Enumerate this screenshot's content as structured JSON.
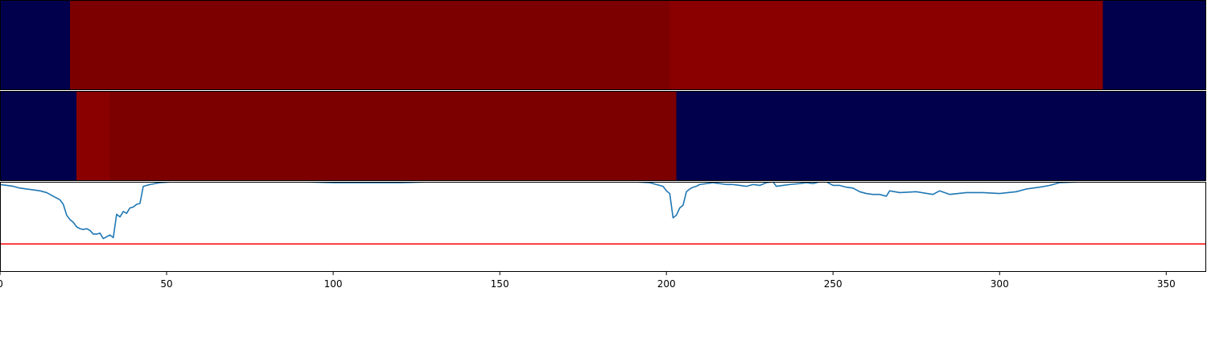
{
  "chart_data": [
    {
      "type": "heatmap",
      "xlim": [
        0,
        362
      ],
      "colormap": "seismic",
      "cells": [
        {
          "x0": 0,
          "x1": 21,
          "color": "#00004c"
        },
        {
          "x0": 21,
          "x1": 201,
          "color": "#7c0000"
        },
        {
          "x0": 201,
          "x1": 331,
          "color": "#8a0000"
        },
        {
          "x0": 331,
          "x1": 362,
          "color": "#00004c"
        }
      ]
    },
    {
      "type": "heatmap",
      "xlim": [
        0,
        362
      ],
      "colormap": "seismic",
      "cells": [
        {
          "x0": 0,
          "x1": 23,
          "color": "#00004c"
        },
        {
          "x0": 23,
          "x1": 33,
          "color": "#8a0000"
        },
        {
          "x0": 33,
          "x1": 203,
          "color": "#7c0000"
        },
        {
          "x0": 203,
          "x1": 362,
          "color": "#00004c"
        }
      ]
    },
    {
      "type": "line",
      "xlim": [
        0,
        362
      ],
      "ylim": [
        0,
        1
      ],
      "grid": false,
      "series": [
        {
          "color": "#1f77b4",
          "x": [
            0,
            2,
            4,
            6,
            8,
            10,
            12,
            14,
            16,
            18,
            19,
            20,
            21,
            22,
            23,
            24,
            25,
            26,
            27,
            28,
            29,
            30,
            31,
            32,
            33,
            34,
            35,
            36,
            37,
            38,
            39,
            40,
            41,
            42,
            43,
            45,
            48,
            52,
            60,
            70,
            80,
            90,
            100,
            110,
            120,
            130,
            140,
            150,
            160,
            170,
            180,
            190,
            195,
            197,
            199,
            200,
            201,
            202,
            203,
            204,
            205,
            206,
            207,
            208,
            209,
            210,
            212,
            214,
            216,
            218,
            220,
            222,
            224,
            226,
            228,
            230,
            232,
            233,
            235,
            237,
            240,
            242,
            244,
            246,
            248,
            250,
            252,
            254,
            256,
            258,
            260,
            262,
            264,
            266,
            267,
            270,
            275,
            280,
            282,
            285,
            290,
            295,
            300,
            305,
            308,
            312,
            315,
            318,
            325,
            335,
            345,
            355,
            362
          ],
          "y": [
            0.97,
            0.96,
            0.95,
            0.93,
            0.92,
            0.91,
            0.9,
            0.88,
            0.84,
            0.8,
            0.75,
            0.63,
            0.58,
            0.55,
            0.5,
            0.48,
            0.47,
            0.48,
            0.46,
            0.42,
            0.42,
            0.43,
            0.37,
            0.39,
            0.41,
            0.38,
            0.64,
            0.61,
            0.67,
            0.65,
            0.71,
            0.72,
            0.75,
            0.76,
            0.95,
            0.97,
            0.99,
            1.0,
            1.0,
            1.0,
            1.0,
            1.0,
            0.99,
            0.99,
            0.99,
            1.0,
            1.0,
            1.0,
            1.0,
            1.0,
            1.0,
            1.0,
            0.99,
            0.97,
            0.95,
            0.9,
            0.87,
            0.6,
            0.63,
            0.71,
            0.74,
            0.89,
            0.92,
            0.94,
            0.95,
            0.97,
            0.98,
            0.99,
            0.98,
            0.97,
            0.97,
            0.96,
            0.95,
            0.97,
            0.96,
            0.99,
            1.0,
            0.95,
            0.96,
            0.97,
            0.98,
            0.99,
            0.98,
            1.0,
            1.0,
            0.96,
            0.96,
            0.94,
            0.93,
            0.89,
            0.87,
            0.86,
            0.86,
            0.84,
            0.9,
            0.88,
            0.89,
            0.86,
            0.9,
            0.86,
            0.88,
            0.88,
            0.87,
            0.89,
            0.92,
            0.94,
            0.96,
            0.99,
            1.0,
            1.0,
            1.0,
            1.0,
            1.0
          ]
        }
      ],
      "hlines": [
        {
          "y": 0.31,
          "color": "#ff0000"
        }
      ]
    }
  ],
  "x_ticks": [
    {
      "value": 0,
      "label": "0"
    },
    {
      "value": 50,
      "label": "50"
    },
    {
      "value": 100,
      "label": "100"
    },
    {
      "value": 150,
      "label": "150"
    },
    {
      "value": 200,
      "label": "200"
    },
    {
      "value": 250,
      "label": "250"
    },
    {
      "value": 300,
      "label": "300"
    },
    {
      "value": 350,
      "label": "350"
    }
  ]
}
